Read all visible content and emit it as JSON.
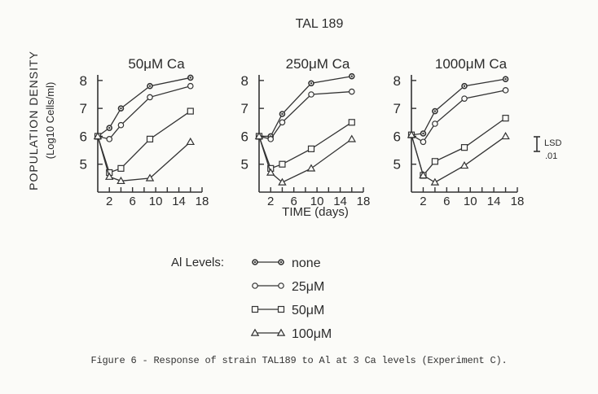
{
  "figure_title": "TAL 189",
  "y_axis_title_line1": "POPULATION DENSITY",
  "y_axis_title_line2": "(Log10 Cells/ml)",
  "x_axis_title": "TIME (days)",
  "lsd_label_top": "LSD",
  "lsd_label_bottom": ".01",
  "legend_title": "Al Levels:",
  "caption": "Figure 6 - Response of strain TAL189 to Al at 3 Ca levels (Experiment C).",
  "chart_data": [
    {
      "type": "line",
      "title": "50μM Ca",
      "xlabel": "TIME (days)",
      "ylabel": "POPULATION DENSITY (Log10 Cells/ml)",
      "xlim": [
        0,
        18
      ],
      "ylim": [
        4,
        8.2
      ],
      "xticks": [
        2,
        6,
        10,
        14,
        18
      ],
      "yticks": [
        5,
        6,
        7,
        8
      ],
      "series": [
        {
          "name": "none",
          "marker": "circle-filled",
          "x": [
            0,
            2,
            4,
            9,
            16
          ],
          "y": [
            6.0,
            6.3,
            7.0,
            7.8,
            8.1
          ]
        },
        {
          "name": "25μM",
          "marker": "circle",
          "x": [
            0,
            2,
            4,
            9,
            16
          ],
          "y": [
            6.0,
            5.9,
            6.4,
            7.4,
            7.8
          ]
        },
        {
          "name": "50μM",
          "marker": "square",
          "x": [
            0,
            2,
            4,
            9,
            16
          ],
          "y": [
            6.0,
            4.7,
            4.85,
            5.9,
            6.9
          ]
        },
        {
          "name": "100μM",
          "marker": "triangle",
          "x": [
            0,
            2,
            4,
            9,
            16
          ],
          "y": [
            6.0,
            4.55,
            4.4,
            4.5,
            5.8
          ]
        }
      ]
    },
    {
      "type": "line",
      "title": "250μM Ca",
      "xlabel": "TIME (days)",
      "ylabel": "",
      "xlim": [
        0,
        18
      ],
      "ylim": [
        4,
        8.2
      ],
      "xticks": [
        2,
        6,
        10,
        14,
        18
      ],
      "yticks": [
        5,
        6,
        7,
        8
      ],
      "series": [
        {
          "name": "none",
          "marker": "circle-filled",
          "x": [
            0,
            2,
            4,
            9,
            16
          ],
          "y": [
            6.0,
            6.0,
            6.8,
            7.9,
            8.15
          ]
        },
        {
          "name": "25μM",
          "marker": "circle",
          "x": [
            0,
            2,
            4,
            9,
            16
          ],
          "y": [
            6.0,
            5.9,
            6.5,
            7.5,
            7.6
          ]
        },
        {
          "name": "50μM",
          "marker": "square",
          "x": [
            0,
            2,
            4,
            9,
            16
          ],
          "y": [
            6.0,
            4.85,
            5.0,
            5.55,
            6.5
          ]
        },
        {
          "name": "100μM",
          "marker": "triangle",
          "x": [
            0,
            2,
            4,
            9,
            16
          ],
          "y": [
            6.0,
            4.7,
            4.35,
            4.85,
            5.9
          ]
        }
      ]
    },
    {
      "type": "line",
      "title": "1000μM Ca",
      "xlabel": "TIME (days)",
      "ylabel": "",
      "xlim": [
        0,
        18
      ],
      "ylim": [
        4,
        8.2
      ],
      "xticks": [
        2,
        6,
        10,
        14,
        18
      ],
      "yticks": [
        5,
        6,
        7,
        8
      ],
      "series": [
        {
          "name": "none",
          "marker": "circle-filled",
          "x": [
            0,
            2,
            4,
            9,
            16
          ],
          "y": [
            6.05,
            6.1,
            6.9,
            7.8,
            8.05
          ]
        },
        {
          "name": "25μM",
          "marker": "circle",
          "x": [
            0,
            2,
            4,
            9,
            16
          ],
          "y": [
            6.05,
            5.8,
            6.45,
            7.35,
            7.65
          ]
        },
        {
          "name": "50μM",
          "marker": "square",
          "x": [
            0,
            2,
            4,
            9,
            16
          ],
          "y": [
            6.05,
            4.6,
            5.1,
            5.6,
            6.65
          ]
        },
        {
          "name": "100μM",
          "marker": "triangle",
          "x": [
            0,
            2,
            4,
            9,
            16
          ],
          "y": [
            6.05,
            4.6,
            4.35,
            4.95,
            6.0
          ]
        }
      ]
    }
  ],
  "legend": [
    {
      "label": "none",
      "marker": "circle-filled"
    },
    {
      "label": "25μM",
      "marker": "circle"
    },
    {
      "label": "50μM",
      "marker": "square"
    },
    {
      "label": "100μM",
      "marker": "triangle"
    }
  ]
}
